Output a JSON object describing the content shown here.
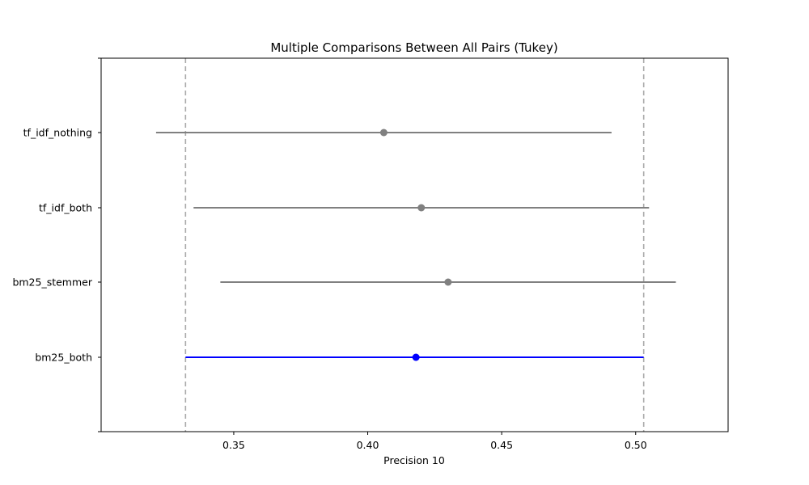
{
  "chart_data": {
    "type": "scatter",
    "subtype": "interval",
    "title": "Multiple Comparisons Between All Pairs (Tukey)",
    "xlabel": "Precision 10",
    "ylabel": "",
    "xlim": [
      0.3005,
      0.5345
    ],
    "x_ticks": [
      0.35,
      0.4,
      0.45,
      0.5
    ],
    "x_tick_labels": [
      "0.35",
      "0.40",
      "0.45",
      "0.50"
    ],
    "categories": [
      "bm25_both",
      "bm25_stemmer",
      "tf_idf_both",
      "tf_idf_nothing"
    ],
    "series": [
      {
        "category": "tf_idf_nothing",
        "mean": 0.406,
        "low": 0.321,
        "high": 0.491,
        "color": "#808080"
      },
      {
        "category": "tf_idf_both",
        "mean": 0.42,
        "low": 0.335,
        "high": 0.505,
        "color": "#808080"
      },
      {
        "category": "bm25_stemmer",
        "mean": 0.43,
        "low": 0.345,
        "high": 0.515,
        "color": "#808080"
      },
      {
        "category": "bm25_both",
        "mean": 0.418,
        "low": 0.332,
        "high": 0.503,
        "color": "#0000ff"
      }
    ],
    "reference_lines": [
      0.332,
      0.503
    ],
    "reference_line_color": "#aaaaaa",
    "grid": false
  }
}
